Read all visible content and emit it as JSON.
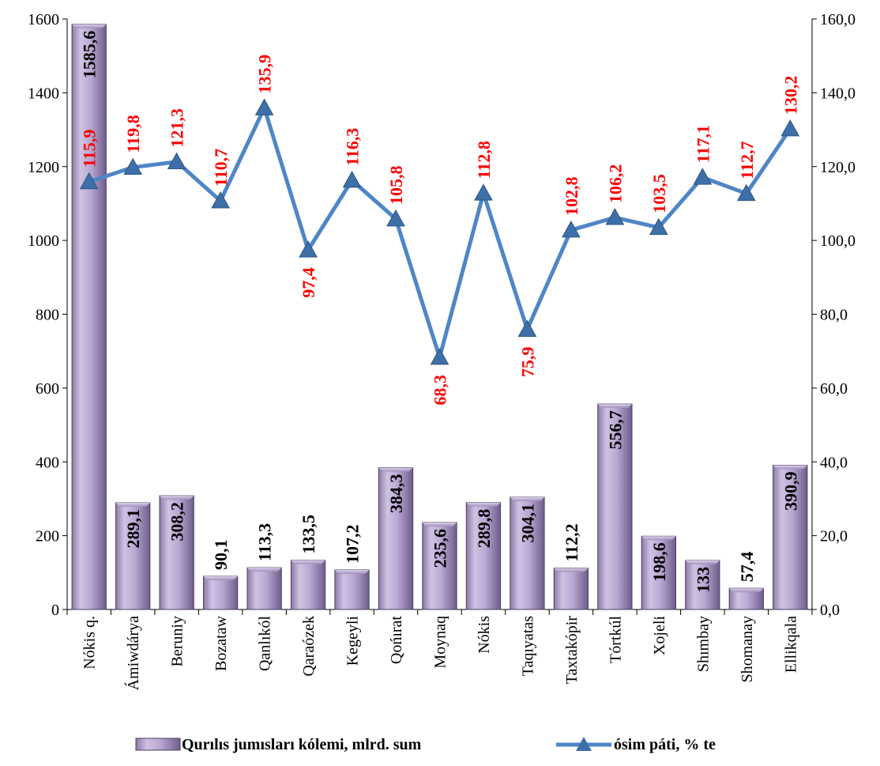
{
  "chart_data": {
    "type": "bar",
    "categories": [
      "Nókis q.",
      "Ámiwdárya",
      "Beruniy",
      "Bozataw",
      "Qanlıkól",
      "Qaraózek",
      "Kegeyli",
      "Qońırat",
      "Moynaq",
      "Nókis",
      "Taqıyatas",
      "Taxtakópir",
      "Tórtkúl",
      "Xojeli",
      "Shımbay",
      "Shomanay",
      "Ellikqala"
    ],
    "series": [
      {
        "name": "Qurılıs jumısları kólemi, mlrd. sum",
        "type": "bar",
        "axis": "left",
        "values": [
          1585.6,
          289.1,
          308.2,
          90.1,
          113.3,
          133.5,
          107.2,
          384.3,
          235.6,
          289.8,
          304.1,
          112.2,
          556.7,
          198.6,
          133,
          57.4,
          390.9
        ],
        "labels": [
          "1585,6",
          "289,1",
          "308,2",
          "90,1",
          "113,3",
          "133,5",
          "107,2",
          "384,3",
          "235,6",
          "289,8",
          "304,1",
          "112,2",
          "556,7",
          "198,6",
          "133",
          "57,4",
          "390,9"
        ],
        "color": "#b8a7cf"
      },
      {
        "name": "ósim páti, % te",
        "type": "line",
        "axis": "right",
        "values": [
          115.9,
          119.8,
          121.3,
          110.7,
          135.9,
          97.4,
          116.3,
          105.8,
          68.3,
          112.8,
          75.9,
          102.8,
          106.2,
          103.5,
          117.1,
          112.7,
          130.2
        ],
        "labels": [
          "115,9",
          "119,8",
          "121,3",
          "110,7",
          "135,9",
          "97,4",
          "116,3",
          "105,8",
          "68,3",
          "112,8",
          "75,9",
          "102,8",
          "106,2",
          "103,5",
          "117,1",
          "112,7",
          "130,2"
        ],
        "color": "#4f86c6",
        "label_color": "#ff0000"
      }
    ],
    "y_left": {
      "ylim": [
        0,
        1600
      ],
      "ticks": [
        0,
        200,
        400,
        600,
        800,
        1000,
        1200,
        1400,
        1600
      ],
      "tick_labels": [
        "0",
        "200",
        "400",
        "600",
        "800",
        "1000",
        "1200",
        "1400",
        "1600"
      ]
    },
    "y_right": {
      "ylim": [
        0,
        160
      ],
      "ticks": [
        0,
        20,
        40,
        60,
        80,
        100,
        120,
        140,
        160
      ],
      "tick_labels": [
        "0,0",
        "20,0",
        "40,0",
        "60,0",
        "80,0",
        "100,0",
        "120,0",
        "140,0",
        "160,0"
      ]
    },
    "grid": false,
    "legend": "bottom"
  }
}
